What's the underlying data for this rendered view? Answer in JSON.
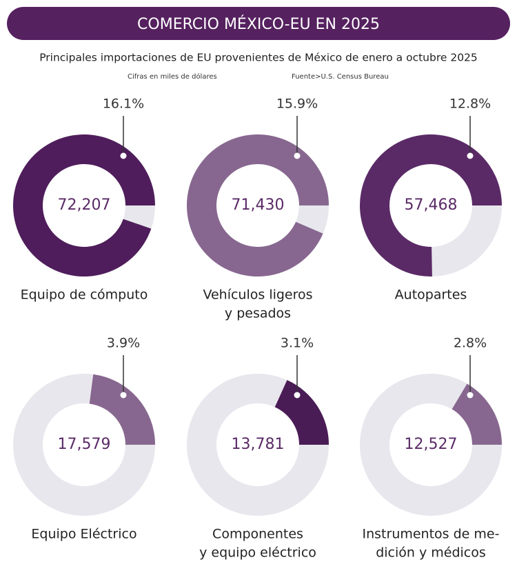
{
  "chart_data": {
    "type": "donut",
    "title": "COMERCIO MÉXICO-EU EN 2025",
    "subtitle": "Principales importaciones de EU provenientes de México de enero a octubre 2025",
    "note": "Cifras en miles de dólares",
    "source": "Fuente>U.S. Census Bureau",
    "ylim": [
      0,
      17
    ],
    "categories": [
      [
        "Equipo de cómputo"
      ],
      [
        "Vehículos ligeros",
        "y pesados"
      ],
      [
        "Autopartes"
      ],
      [
        "Equipo Eléctrico"
      ],
      [
        "Componentes",
        "y equipo eléctrico"
      ],
      [
        "Instrumentos de me-",
        "dición y médicos"
      ]
    ],
    "values": [
      16.1,
      15.9,
      12.8,
      3.9,
      3.1,
      2.8
    ],
    "value_labels": [
      "16.1%",
      "15.9%",
      "12.8%",
      "3.9%",
      "3.1%",
      "2.8%"
    ],
    "amounts": [
      "72,207",
      "71,430",
      "57,468",
      "17,579",
      "13,781",
      "12,527"
    ],
    "colors": [
      "#4f1d5b",
      "#87678f",
      "#5a2a66",
      "#87678f",
      "#4a1c55",
      "#87678f"
    ],
    "remainder_color": "#e8e7ed"
  }
}
